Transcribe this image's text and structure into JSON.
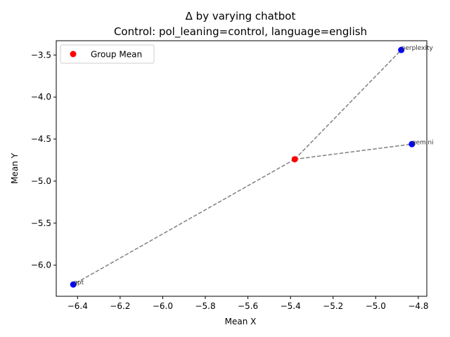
{
  "chart_data": {
    "type": "scatter",
    "title": "Δ by varying chatbot",
    "subtitle": "Control: pol_leaning=control, language=english",
    "xlabel": "Mean X",
    "ylabel": "Mean Y",
    "xlim": [
      -6.5,
      -4.76
    ],
    "ylim": [
      -6.37,
      -3.33
    ],
    "xticks": [
      -6.4,
      -6.2,
      -6.0,
      -5.8,
      -5.6,
      -5.4,
      -5.2,
      -5.0,
      -4.8
    ],
    "xtick_labels": [
      "−6.4",
      "−6.2",
      "−6.0",
      "−5.8",
      "−5.6",
      "−5.4",
      "−5.2",
      "−5.0",
      "−4.8"
    ],
    "yticks": [
      -6.0,
      -5.5,
      -5.0,
      -4.5,
      -4.0,
      -3.5
    ],
    "ytick_labels": [
      "−6.0",
      "−5.5",
      "−5.0",
      "−4.5",
      "−4.0",
      "−3.5"
    ],
    "grid": false,
    "legend": {
      "placement": "top-left",
      "entries": [
        "Group Mean"
      ]
    },
    "group_mean": {
      "name": "Group Mean",
      "x": -5.38,
      "y": -4.74,
      "color": "#ff0000"
    },
    "points": [
      {
        "label": "perplexity",
        "x": -4.88,
        "y": -3.44,
        "color": "#0000ff"
      },
      {
        "label": "gemini",
        "x": -4.83,
        "y": -4.56,
        "color": "#0000ff"
      },
      {
        "label": "gpt",
        "x": -6.42,
        "y": -6.23,
        "color": "#0000ff"
      }
    ],
    "connector_color": "#808080"
  }
}
